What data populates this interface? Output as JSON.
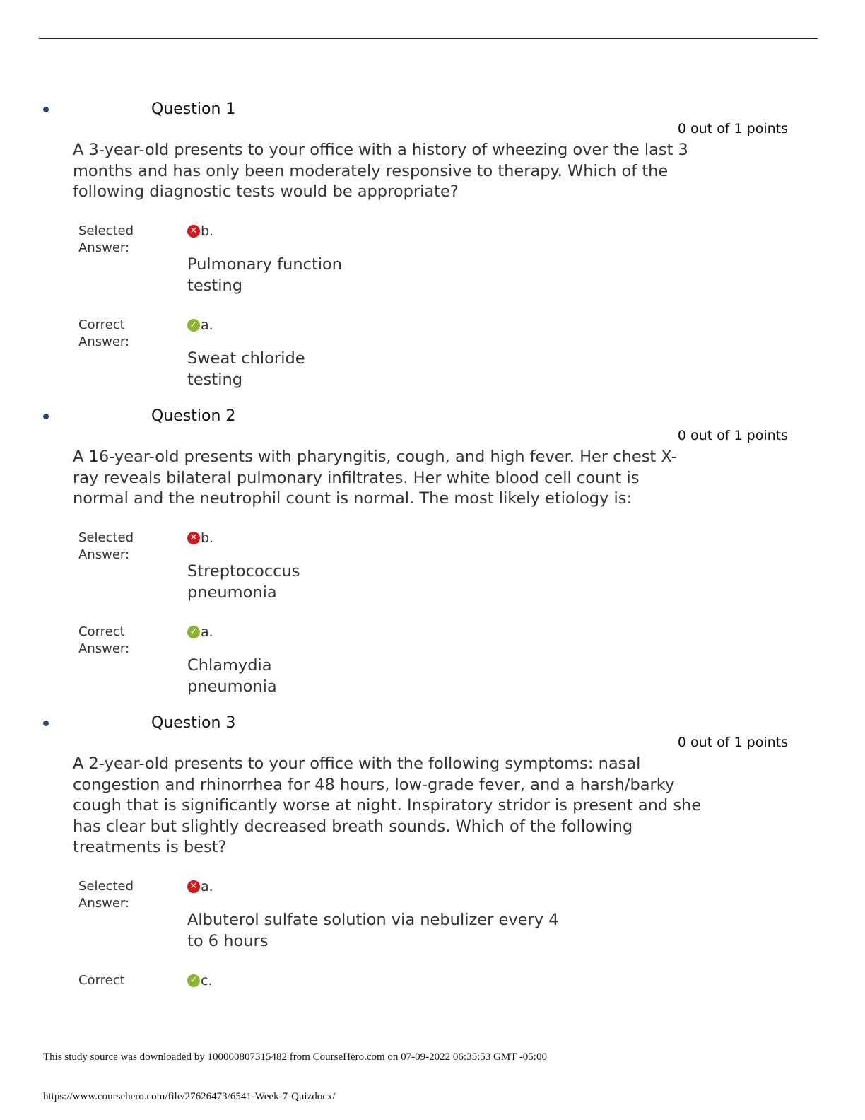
{
  "questions": [
    {
      "title": "Question 1",
      "points": "0 out of 1 points",
      "text": "A 3-year-old presents to your office with a history of wheezing over the last 3 months and has only been moderately responsive to therapy. Which of the following diagnostic tests would be appropriate?",
      "selected_label": "Selected Answer:",
      "selected_letter": "b.",
      "selected_text": "Pulmonary function testing",
      "correct_label": "Correct Answer:",
      "correct_letter": "a.",
      "correct_text": "Sweat chloride testing"
    },
    {
      "title": "Question 2",
      "points": "0 out of 1 points",
      "text": "A 16-year-old presents with pharyngitis, cough, and high fever. Her chest X-ray reveals bilateral pulmonary infiltrates. Her white blood cell count is normal and the neutrophil count is normal. The most likely etiology is:",
      "selected_label": "Selected Answer:",
      "selected_letter": "b.",
      "selected_text": "Streptococcus pneumonia",
      "correct_label": "Correct Answer:",
      "correct_letter": "a.",
      "correct_text": "Chlamydia pneumonia"
    },
    {
      "title": "Question 3",
      "points": "0 out of 1 points",
      "text": "A 2-year-old presents to your office with the following symptoms: nasal congestion and rhinorrhea for 48 hours, low-grade fever, and a harsh/barky cough that is significantly worse at night. Inspiratory stridor is present and she has clear but slightly decreased breath sounds. Which of the following treatments is best?",
      "selected_label": "Selected Answer:",
      "selected_letter": "a.",
      "selected_text": "Albuterol sulfate solution via nebulizer every 4 to 6 hours",
      "correct_label": "Correct",
      "correct_letter": "c."
    }
  ],
  "icons": {
    "incorrect": "x-circle-icon",
    "correct": "check-circle-icon"
  },
  "colors": {
    "incorrect": "#d7141a",
    "correct": "#8ab530",
    "bullet": "#234a73"
  },
  "footer": {
    "download_note": "This study source was downloaded by 100000807315482 from CourseHero.com on 07-09-2022 06:35:53 GMT -05:00",
    "url": "https://www.coursehero.com/file/27626473/6541-Week-7-Quizdocx/"
  }
}
